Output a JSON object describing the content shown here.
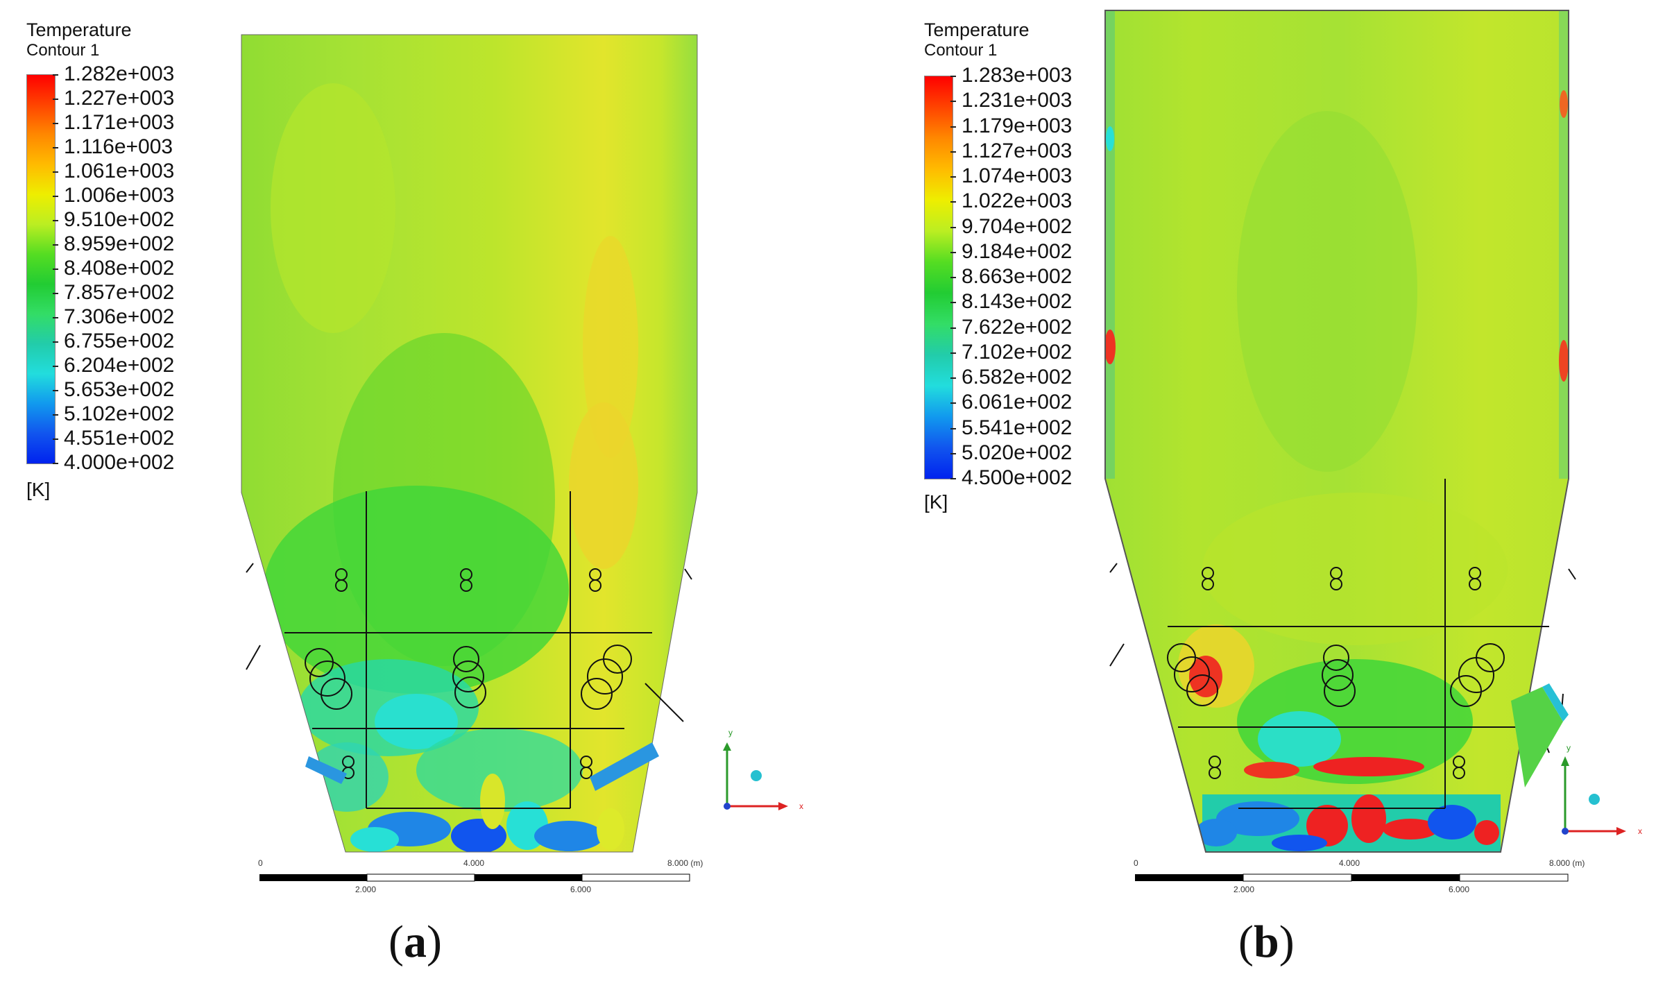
{
  "panels": [
    {
      "id": "a",
      "legend": {
        "title": "Temperature",
        "subtitle": "Contour 1",
        "unit": "[K]",
        "levels": [
          "1.282e+003",
          "1.227e+003",
          "1.171e+003",
          "1.116e+003",
          "1.061e+003",
          "1.006e+003",
          "9.510e+002",
          "8.959e+002",
          "8.408e+002",
          "7.857e+002",
          "7.306e+002",
          "6.755e+002",
          "6.204e+002",
          "5.653e+002",
          "5.102e+002",
          "4.551e+002",
          "4.000e+002"
        ]
      },
      "scale": {
        "labels_top": [
          "0",
          "4.000",
          "8.000 (m)"
        ],
        "labels_bottom": [
          "2.000",
          "6.000"
        ]
      },
      "axes": {
        "x": "x",
        "y": "y"
      },
      "caption": "a"
    },
    {
      "id": "b",
      "legend": {
        "title": "Temperature",
        "subtitle": "Contour 1",
        "unit": "[K]",
        "levels": [
          "1.283e+003",
          "1.231e+003",
          "1.179e+003",
          "1.127e+003",
          "1.074e+003",
          "1.022e+003",
          "9.704e+002",
          "9.184e+002",
          "8.663e+002",
          "8.143e+002",
          "7.622e+002",
          "7.102e+002",
          "6.582e+002",
          "6.061e+002",
          "5.541e+002",
          "5.020e+002",
          "4.500e+002"
        ]
      },
      "scale": {
        "labels_top": [
          "0",
          "4.000",
          "8.000 (m)"
        ],
        "labels_bottom": [
          "2.000",
          "6.000"
        ]
      },
      "axes": {
        "x": "x",
        "y": "y"
      },
      "caption": "b"
    }
  ],
  "colors": {
    "rainbow": [
      "#ff0000",
      "#ff4400",
      "#ff8800",
      "#ffbb00",
      "#eeee00",
      "#bbee22",
      "#55dd22",
      "#22cc33",
      "#33dd66",
      "#22ccaa",
      "#22dddd",
      "#1199ee",
      "#1155ee",
      "#0022ee"
    ],
    "bulk_green": "#a6e234",
    "yellow_green": "#cfea2a",
    "green": "#3fd63a",
    "yellow": "#e6e42a",
    "cyan": "#27e0d6",
    "blue": "#1f86e6",
    "red": "#ee2222"
  }
}
